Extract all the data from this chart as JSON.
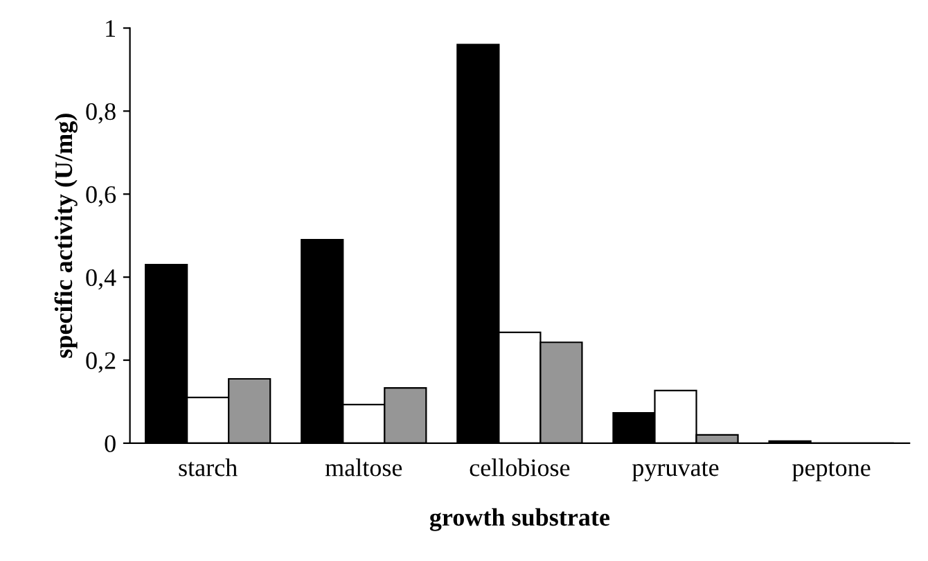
{
  "chart_data": {
    "type": "bar",
    "xlabel": "growth substrate",
    "ylabel": "specific activity (U/mg)",
    "categories": [
      "starch",
      "maltose",
      "cellobiose",
      "pyruvate",
      "peptone"
    ],
    "series": [
      {
        "color": "#000000",
        "values": [
          0.43,
          0.49,
          0.96,
          0.073,
          0.005
        ]
      },
      {
        "color": "#ffffff",
        "values": [
          0.11,
          0.093,
          0.267,
          0.127,
          0
        ]
      },
      {
        "color": "#969696",
        "values": [
          0.155,
          0.133,
          0.243,
          0.02,
          0
        ]
      }
    ],
    "ylim": [
      0,
      1
    ],
    "yticks": [
      0,
      {
        "value": 0.2,
        "label": "0,2"
      },
      {
        "value": 0.4,
        "label": "0,4"
      },
      {
        "value": 0.6,
        "label": "0,6"
      },
      {
        "value": 0.8,
        "label": "0,8"
      },
      1
    ],
    "grid": false
  }
}
